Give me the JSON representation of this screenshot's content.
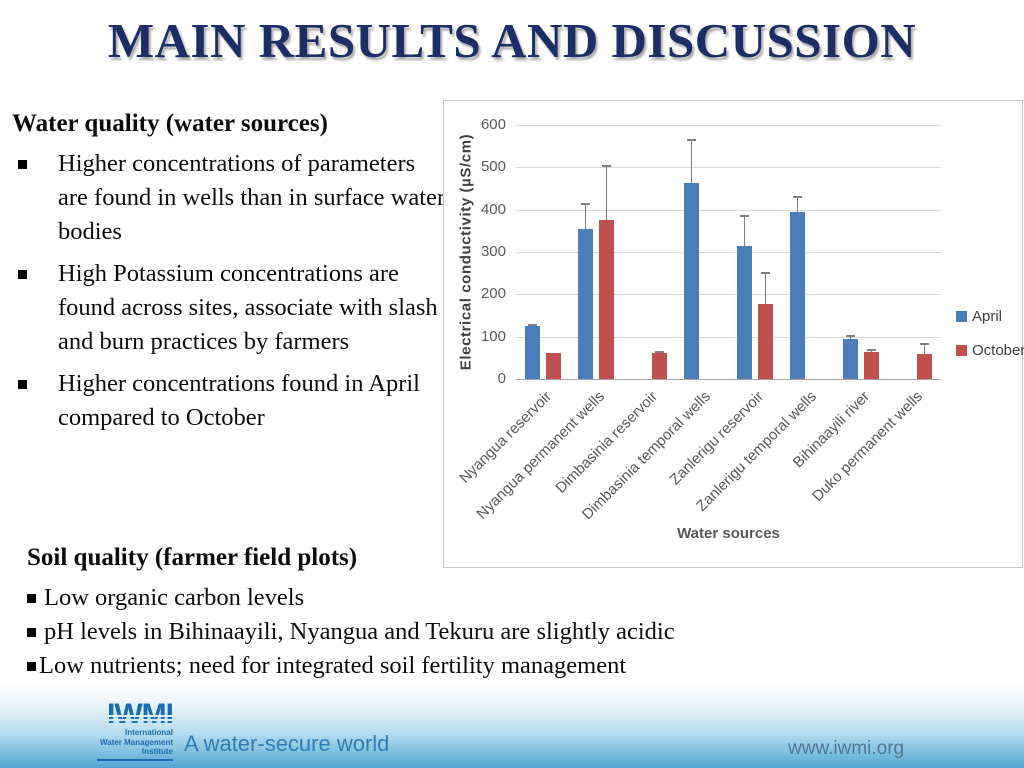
{
  "slide": {
    "title": "MAIN RESULTS AND DISCUSSION"
  },
  "water_section": {
    "heading": "Water quality (water sources)",
    "bullets": [
      "Higher concentrations of parameters are found in wells than in surface water bodies",
      "High Potassium concentrations are found across sites, associate with slash and burn practices by farmers",
      "Higher concentrations found in April compared to October"
    ]
  },
  "soil_section": {
    "heading": "Soil quality (farmer field plots)",
    "bullets": [
      "Low organic carbon levels",
      "pH levels in Bihinaayili, Nyangua and Tekuru are slightly acidic",
      "Low nutrients; need for integrated soil fertility management"
    ]
  },
  "chart_data": {
    "type": "bar",
    "title": "",
    "categories": [
      "Nyangua reservoir",
      "Nyangua permanent wells",
      "Dimbasinia reservoir",
      "Dimbasinia temporal wells",
      "Zanlerigu reservoir",
      "Zanlerigu temporal wells",
      "Bihinaayili river",
      "Duko permanent wells"
    ],
    "series": [
      {
        "name": "April",
        "color": "#4a7ebb",
        "values": [
          125,
          355,
          null,
          462,
          315,
          395,
          95,
          null
        ],
        "error_top": [
          131,
          415,
          null,
          567,
          388,
          432,
          105,
          null
        ]
      },
      {
        "name": "October",
        "color": "#c0504d",
        "values": [
          62,
          375,
          62,
          null,
          177,
          null,
          63,
          58
        ],
        "error_top": [
          null,
          505,
          66,
          null,
          252,
          null,
          70,
          85
        ]
      }
    ],
    "xlabel": "Water sources",
    "ylabel": "Electrical conductivity (µS/cm)",
    "ylim": [
      0,
      600
    ],
    "yticks": [
      0,
      100,
      200,
      300,
      400,
      500,
      600
    ],
    "grid": true,
    "legend_position": "right",
    "error_bar_color": "#7f7f7f",
    "gridline_color": "#d9d9d9",
    "axis_line_color": "#a6a6a6"
  },
  "footer": {
    "logo_word": "IWMI",
    "logo_sub_lines": [
      "International",
      "Water Management",
      "Institute"
    ],
    "tagline": "A water-secure world",
    "website": "www.iwmi.org"
  }
}
